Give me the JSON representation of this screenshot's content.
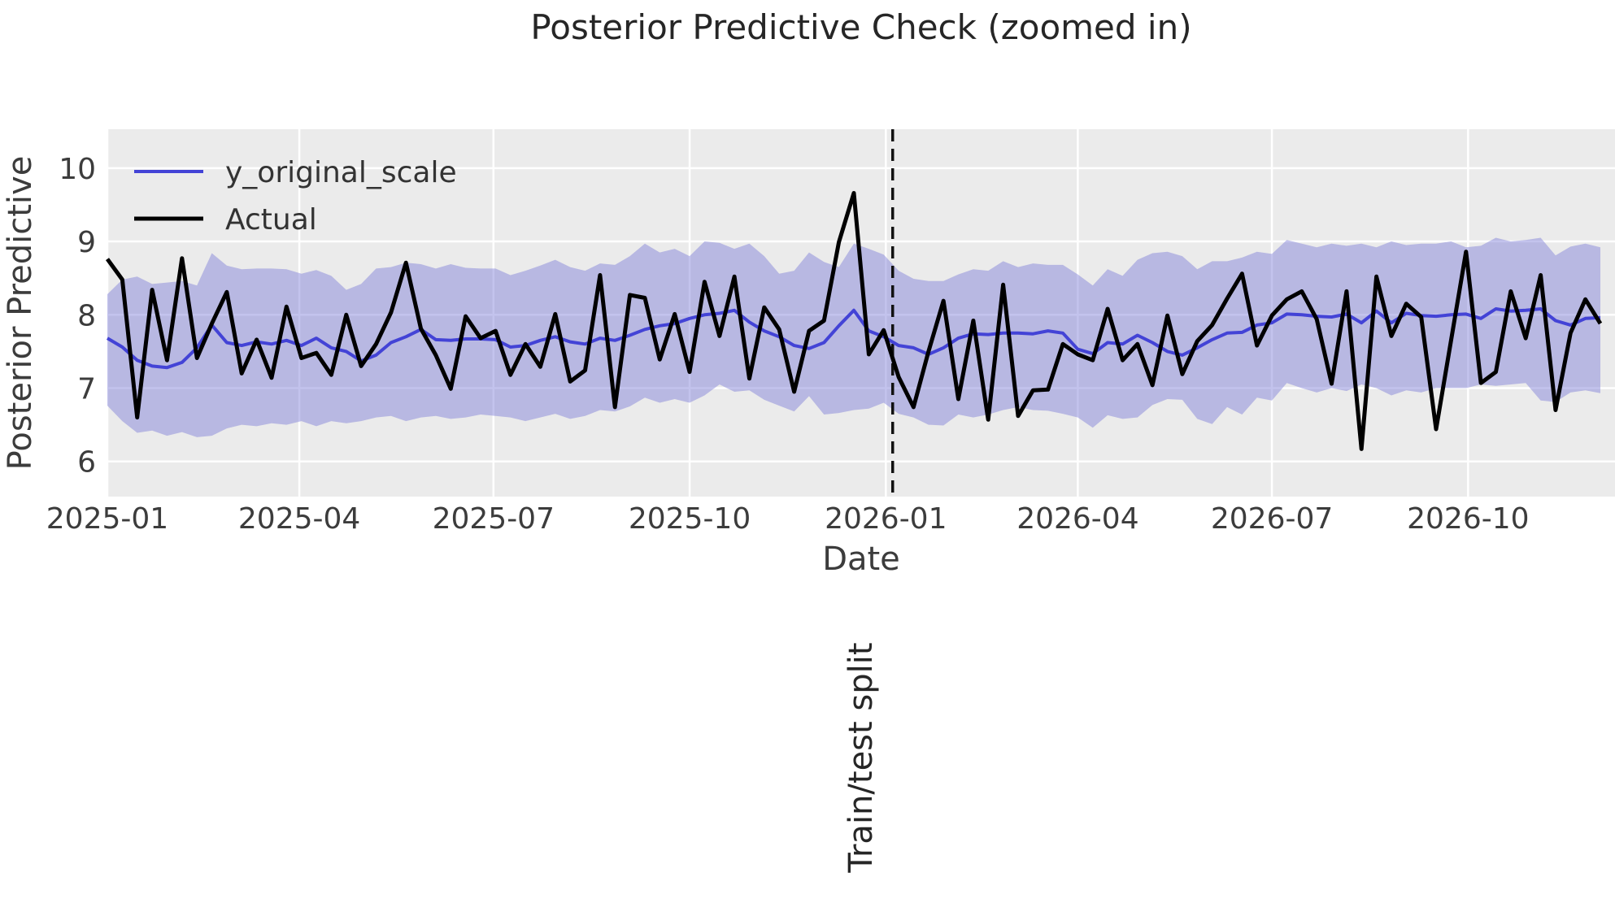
{
  "title": "Posterior Predictive Check (zoomed in)",
  "axes": {
    "x_label": "Date",
    "y_label": "Posterior Predictive"
  },
  "legend": {
    "position": "upper left",
    "items": [
      {
        "label": "y_original_scale",
        "color": "#4343d6"
      },
      {
        "label": "Actual",
        "color": "#000000"
      }
    ]
  },
  "annotation": {
    "split_label": "Train/test split"
  },
  "colors": {
    "figure_background": "#ffffff",
    "plot_background": "#ebebeb",
    "grid": "#ffffff",
    "band_fill": "#7a7ad6",
    "band_alpha": 0.45,
    "mean_line": "#4343d6",
    "actual_line": "#000000",
    "split_line": "#111111",
    "text": "#2e2e2e"
  },
  "chart_data": {
    "type": "line",
    "title": "Posterior Predictive Check (zoomed in)",
    "xlabel": "Date",
    "ylabel": "Posterior Predictive",
    "x_start_date": "2025-01-01",
    "x_step_days": 7,
    "n_points": 101,
    "xlim_weeks": [
      0,
      100.98
    ],
    "ylim": [
      5.52,
      10.53
    ],
    "grid": true,
    "legend_position": "upper left",
    "x_ticks": [
      {
        "label": "2025-01",
        "week": 0
      },
      {
        "label": "2025-04",
        "week": 12.86
      },
      {
        "label": "2025-07",
        "week": 25.86
      },
      {
        "label": "2025-10",
        "week": 39.0
      },
      {
        "label": "2026-01",
        "week": 52.14
      },
      {
        "label": "2026-04",
        "week": 65.0
      },
      {
        "label": "2026-07",
        "week": 78.0
      },
      {
        "label": "2026-10",
        "week": 91.14
      }
    ],
    "y_ticks": [
      6,
      7,
      8,
      9,
      10
    ],
    "split": {
      "week": 52.6,
      "date": "2026-01-04",
      "label": "Train/test split"
    },
    "band": {
      "name": "posterior predictive interval",
      "upper": [
        8.28,
        8.48,
        8.52,
        8.42,
        8.44,
        8.46,
        8.4,
        8.84,
        8.67,
        8.62,
        8.63,
        8.63,
        8.62,
        8.56,
        8.61,
        8.53,
        8.34,
        8.42,
        8.63,
        8.65,
        8.71,
        8.69,
        8.63,
        8.69,
        8.64,
        8.63,
        8.63,
        8.54,
        8.6,
        8.67,
        8.75,
        8.65,
        8.6,
        8.7,
        8.68,
        8.8,
        8.97,
        8.85,
        8.9,
        8.8,
        9.0,
        8.98,
        8.9,
        8.97,
        8.8,
        8.56,
        8.6,
        8.85,
        8.72,
        8.65,
        8.97,
        8.9,
        8.82,
        8.6,
        8.49,
        8.46,
        8.46,
        8.55,
        8.62,
        8.6,
        8.73,
        8.65,
        8.7,
        8.68,
        8.68,
        8.55,
        8.4,
        8.62,
        8.53,
        8.75,
        8.84,
        8.86,
        8.8,
        8.62,
        8.73,
        8.73,
        8.78,
        8.86,
        8.83,
        9.02,
        8.97,
        8.92,
        8.97,
        8.94,
        8.97,
        8.92,
        9.0,
        8.95,
        8.97,
        8.97,
        9.0,
        8.92,
        8.94,
        9.05,
        9.0,
        9.02,
        9.05,
        8.81,
        8.93,
        8.97,
        8.92
      ],
      "lower": [
        6.76,
        6.55,
        6.39,
        6.42,
        6.35,
        6.4,
        6.33,
        6.35,
        6.45,
        6.5,
        6.48,
        6.52,
        6.5,
        6.55,
        6.48,
        6.55,
        6.52,
        6.55,
        6.6,
        6.62,
        6.55,
        6.6,
        6.62,
        6.58,
        6.6,
        6.64,
        6.62,
        6.6,
        6.55,
        6.6,
        6.65,
        6.58,
        6.62,
        6.7,
        6.68,
        6.75,
        6.87,
        6.8,
        6.85,
        6.8,
        6.9,
        7.05,
        6.95,
        6.97,
        6.84,
        6.76,
        6.68,
        6.89,
        6.64,
        6.66,
        6.7,
        6.72,
        6.8,
        6.65,
        6.6,
        6.5,
        6.49,
        6.64,
        6.6,
        6.64,
        6.7,
        6.74,
        6.7,
        6.69,
        6.65,
        6.6,
        6.46,
        6.63,
        6.58,
        6.6,
        6.77,
        6.85,
        6.84,
        6.58,
        6.51,
        6.74,
        6.64,
        6.87,
        6.83,
        7.07,
        7.0,
        6.94,
        7.0,
        6.96,
        7.05,
        7.0,
        6.9,
        6.97,
        6.94,
        7.0,
        7.0,
        7.0,
        7.05,
        7.03,
        7.05,
        7.07,
        6.83,
        6.81,
        6.94,
        6.97,
        6.93
      ]
    },
    "series": [
      {
        "name": "y_original_scale",
        "color": "#4343d6",
        "values": [
          7.68,
          7.56,
          7.38,
          7.3,
          7.28,
          7.35,
          7.55,
          7.86,
          7.62,
          7.58,
          7.63,
          7.6,
          7.65,
          7.58,
          7.68,
          7.55,
          7.5,
          7.37,
          7.45,
          7.62,
          7.7,
          7.8,
          7.66,
          7.65,
          7.67,
          7.67,
          7.66,
          7.56,
          7.58,
          7.65,
          7.7,
          7.63,
          7.6,
          7.68,
          7.65,
          7.72,
          7.8,
          7.85,
          7.88,
          7.95,
          8.0,
          8.02,
          8.06,
          7.9,
          7.78,
          7.7,
          7.58,
          7.54,
          7.62,
          7.85,
          8.06,
          7.78,
          7.7,
          7.58,
          7.55,
          7.46,
          7.55,
          7.68,
          7.74,
          7.73,
          7.75,
          7.75,
          7.74,
          7.78,
          7.75,
          7.53,
          7.47,
          7.62,
          7.6,
          7.72,
          7.62,
          7.5,
          7.45,
          7.55,
          7.66,
          7.75,
          7.76,
          7.86,
          7.89,
          8.01,
          8.0,
          7.98,
          7.97,
          8.01,
          7.89,
          8.05,
          7.89,
          8.02,
          7.99,
          7.98,
          8.0,
          8.01,
          7.95,
          8.08,
          8.05,
          8.06,
          8.08,
          7.92,
          7.86,
          7.95,
          7.96
        ]
      },
      {
        "name": "Actual",
        "color": "#000000",
        "values": [
          8.76,
          8.48,
          6.6,
          8.34,
          7.38,
          8.77,
          7.41,
          7.88,
          8.31,
          7.2,
          7.66,
          7.14,
          8.11,
          7.41,
          7.48,
          7.18,
          8.0,
          7.3,
          7.6,
          8.03,
          8.71,
          7.81,
          7.45,
          6.99,
          7.98,
          7.68,
          7.78,
          7.18,
          7.6,
          7.29,
          8.01,
          7.09,
          7.24,
          8.54,
          6.74,
          8.27,
          8.23,
          7.39,
          8.01,
          7.22,
          8.45,
          7.71,
          8.52,
          7.13,
          8.1,
          7.8,
          6.95,
          7.78,
          7.92,
          8.99,
          9.66,
          7.46,
          7.79,
          7.15,
          6.74,
          7.5,
          8.19,
          6.85,
          7.92,
          6.57,
          8.41,
          6.62,
          6.97,
          6.98,
          7.6,
          7.46,
          7.38,
          8.08,
          7.38,
          7.6,
          7.04,
          7.99,
          7.19,
          7.64,
          7.86,
          8.22,
          8.56,
          7.58,
          7.99,
          8.21,
          8.32,
          7.94,
          7.06,
          8.32,
          6.17,
          8.52,
          7.71,
          8.15,
          7.97,
          6.44,
          7.65,
          8.86,
          7.07,
          7.22,
          8.32,
          7.68,
          8.54,
          6.7,
          7.75,
          8.21,
          7.88
        ]
      }
    ]
  }
}
